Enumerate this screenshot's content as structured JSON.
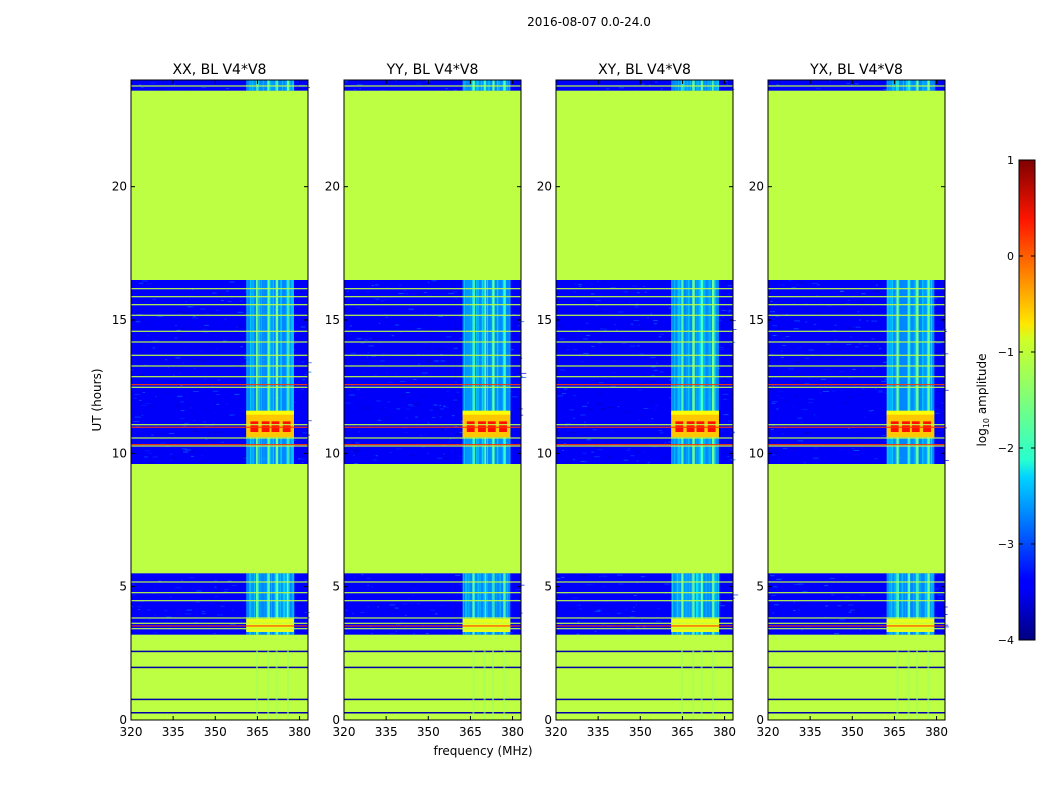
{
  "figure_title": "2016-08-07 0.0-24.0",
  "x_axis_label": "frequency (MHz)",
  "y_axis_label": "UT (hours)",
  "colorbar": {
    "label_prefix": "log",
    "label_sub": "10",
    "label_suffix": " amplitude",
    "ticks": [
      "1",
      "0",
      "−1",
      "−2",
      "−3",
      "−4"
    ],
    "range": [
      -4,
      1
    ],
    "colormap": "jet"
  },
  "chart_data": [
    {
      "type": "heatmap",
      "title": "XX, BL V4*V8",
      "xlabel": "",
      "ylabel": "UT (hours)",
      "xlim": [
        320,
        383
      ],
      "ylim": [
        0,
        24
      ],
      "xticks": [
        "320",
        "335",
        "350",
        "365",
        "380"
      ],
      "yticks": [
        "0",
        "5",
        "10",
        "15",
        "20"
      ],
      "shifted_spikes": false
    },
    {
      "type": "heatmap",
      "title": "YY, BL V4*V8",
      "xlabel": "frequency (MHz)",
      "ylabel": "",
      "xlim": [
        320,
        383
      ],
      "ylim": [
        0,
        24
      ],
      "xticks": [
        "320",
        "335",
        "350",
        "365",
        "380"
      ],
      "yticks": [
        "0",
        "5",
        "10",
        "15",
        "20"
      ],
      "shifted_spikes": true
    },
    {
      "type": "heatmap",
      "title": "XY, BL V4*V8",
      "xlabel": "",
      "ylabel": "",
      "xlim": [
        320,
        383
      ],
      "ylim": [
        0,
        24
      ],
      "xticks": [
        "320",
        "335",
        "350",
        "365",
        "380"
      ],
      "yticks": [
        "0",
        "5",
        "10",
        "15",
        "20"
      ],
      "shifted_spikes": false
    },
    {
      "type": "heatmap",
      "title": "YX, BL V4*V8",
      "xlabel": "",
      "ylabel": "",
      "xlim": [
        320,
        383
      ],
      "ylim": [
        0,
        24
      ],
      "xticks": [
        "320",
        "335",
        "350",
        "365",
        "380"
      ],
      "yticks": [
        "0",
        "5",
        "10",
        "15",
        "20"
      ],
      "shifted_spikes": true
    }
  ],
  "data_regions": {
    "flagged_hours": [
      [
        0,
        3.2
      ],
      [
        5.5,
        9.6
      ],
      [
        16.5,
        23.6
      ]
    ],
    "active_hours": [
      [
        3.2,
        5.5
      ],
      [
        9.6,
        16.5
      ],
      [
        23.6,
        24
      ]
    ],
    "flagged_level": -1.2,
    "background_level": -3.4,
    "rfi_band_mhz": [
      361,
      378
    ],
    "peak_hours": [
      10.6,
      11.5
    ],
    "peak_level": 0.3
  }
}
